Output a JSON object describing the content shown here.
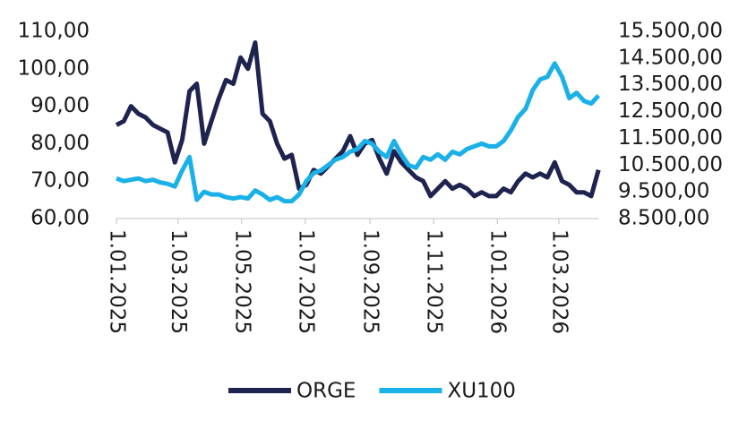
{
  "chart_data": {
    "type": "line",
    "x": [
      "1.01.2025",
      "8.01.2025",
      "15.01.2025",
      "22.01.2025",
      "29.01.2025",
      "5.02.2025",
      "12.02.2025",
      "19.02.2025",
      "26.02.2025",
      "5.03.2025",
      "12.03.2025",
      "19.03.2025",
      "26.03.2025",
      "2.04.2025",
      "9.04.2025",
      "16.04.2025",
      "23.04.2025",
      "30.04.2025",
      "7.05.2025",
      "14.05.2025",
      "21.05.2025",
      "28.05.2025",
      "4.06.2025",
      "11.06.2025",
      "18.06.2025",
      "25.06.2025",
      "2.07.2025",
      "9.07.2025",
      "16.07.2025",
      "23.07.2025",
      "30.07.2025",
      "6.08.2025",
      "13.08.2025",
      "20.08.2025",
      "27.08.2025",
      "3.09.2025",
      "10.09.2025",
      "17.09.2025",
      "24.09.2025",
      "1.10.2025",
      "8.10.2025",
      "15.10.2025",
      "22.10.2025",
      "29.10.2025",
      "5.11.2025",
      "12.11.2025",
      "19.11.2025",
      "26.11.2025",
      "3.12.2025",
      "10.12.2025",
      "17.12.2025",
      "24.12.2025",
      "31.12.2025",
      "7.01.2026",
      "14.01.2026",
      "21.01.2026",
      "28.01.2026",
      "4.02.2026",
      "11.02.2026",
      "18.02.2026",
      "25.02.2026",
      "4.03.2026",
      "11.03.2026",
      "18.03.2026",
      "25.03.2026",
      "1.04.2026",
      "8.04.2026"
    ],
    "series": [
      {
        "name": "ORGE",
        "color": "#1e2350",
        "axis": "y",
        "values": [
          85,
          86,
          90,
          88,
          87,
          85,
          84,
          83,
          75,
          81,
          94,
          96,
          80,
          86,
          92,
          97,
          96,
          103,
          100,
          107,
          88,
          86,
          80,
          76,
          77,
          68,
          69,
          73,
          72,
          74,
          76,
          78,
          82,
          77,
          80,
          81,
          76,
          72,
          78,
          75,
          73,
          71,
          70,
          66,
          68,
          70,
          68,
          69,
          68,
          66,
          67,
          66,
          66,
          68,
          67,
          70,
          72,
          71,
          72,
          71,
          75,
          70,
          69,
          67,
          67,
          66,
          73
        ]
      },
      {
        "name": "XU100",
        "color": "#1ab0e8",
        "axis": "y2",
        "values": [
          10000,
          9900,
          9950,
          10000,
          9900,
          9950,
          9850,
          9800,
          9700,
          10300,
          10800,
          9200,
          9500,
          9400,
          9400,
          9300,
          9250,
          9300,
          9250,
          9550,
          9400,
          9200,
          9300,
          9150,
          9150,
          9400,
          9900,
          10200,
          10300,
          10500,
          10700,
          10800,
          11000,
          11100,
          11400,
          11300,
          11000,
          10800,
          11400,
          10900,
          10500,
          10400,
          10800,
          10700,
          10900,
          10700,
          11000,
          10900,
          11100,
          11200,
          11300,
          11200,
          11200,
          11400,
          11800,
          12300,
          12600,
          13300,
          13700,
          13800,
          14300,
          13800,
          13000,
          13200,
          12900,
          12800,
          13100
        ]
      }
    ],
    "xlim": [
      "1.01.2025",
      "8.04.2026"
    ],
    "xticks": [
      "1.01.2025",
      "1.03.2025",
      "1.05.2025",
      "1.07.2025",
      "1.09.2025",
      "1.11.2025",
      "1.01.2026",
      "1.03.2026"
    ],
    "ylim": [
      60,
      110
    ],
    "yticks": [
      {
        "value": 60,
        "label": "60,00"
      },
      {
        "value": 70,
        "label": "70,00"
      },
      {
        "value": 80,
        "label": "80,00"
      },
      {
        "value": 90,
        "label": "90,00"
      },
      {
        "value": 100,
        "label": "100,00"
      },
      {
        "value": 110,
        "label": "110,00"
      }
    ],
    "y2lim": [
      8500,
      15500
    ],
    "y2ticks": [
      {
        "value": 8500,
        "label": "8.500,00"
      },
      {
        "value": 9500,
        "label": "9.500,00"
      },
      {
        "value": 10500,
        "label": "10.500,00"
      },
      {
        "value": 11500,
        "label": "11.500,00"
      },
      {
        "value": 12500,
        "label": "12.500,00"
      },
      {
        "value": 13500,
        "label": "13.500,00"
      },
      {
        "value": 14500,
        "label": "14.500,00"
      },
      {
        "value": 15500,
        "label": "15.500,00"
      }
    ],
    "legend": "bottom"
  }
}
